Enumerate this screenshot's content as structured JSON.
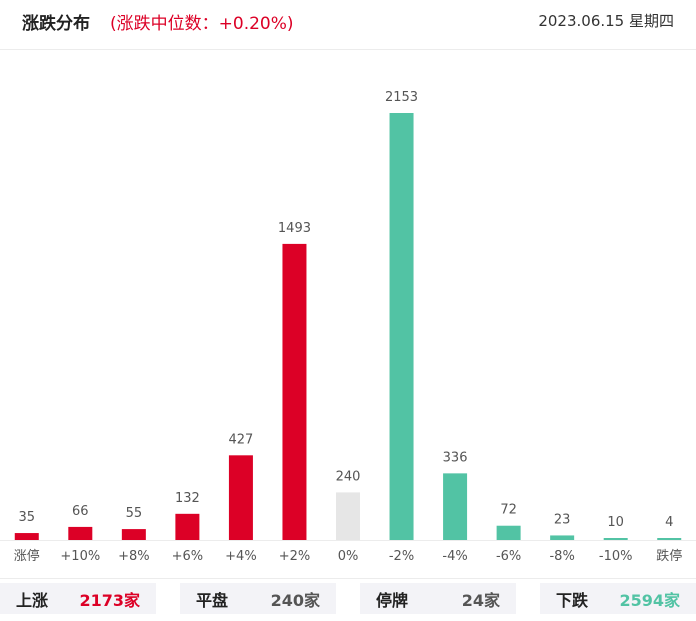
{
  "header": {
    "title": "涨跌分布",
    "subtitle": "(涨跌中位数：+0.20%)",
    "date": "2023.06.15 星期四"
  },
  "colors": {
    "up": "#dc0026",
    "flat": "#e6e6e6",
    "down": "#52c3a4",
    "grid": "#ececec"
  },
  "chart_data": {
    "type": "bar",
    "categories": [
      "涨停",
      "+10%",
      "+8%",
      "+6%",
      "+4%",
      "+2%",
      "0%",
      "-2%",
      "-4%",
      "-6%",
      "-8%",
      "-10%",
      "跌停"
    ],
    "values": [
      35,
      66,
      55,
      132,
      427,
      1493,
      240,
      2153,
      336,
      72,
      23,
      10,
      4
    ],
    "bar_colors": [
      "up",
      "up",
      "up",
      "up",
      "up",
      "up",
      "flat",
      "down",
      "down",
      "down",
      "down",
      "down",
      "down"
    ],
    "title": "涨跌分布",
    "xlabel": "",
    "ylabel": "",
    "ylim": [
      0,
      2153
    ],
    "grid": false,
    "data_labels": true
  },
  "summary": [
    {
      "label": "上涨",
      "value": "2173家",
      "color": "#dc0026"
    },
    {
      "label": "平盘",
      "value": "240家",
      "color": "#555555"
    },
    {
      "label": "停牌",
      "value": "24家",
      "color": "#555555"
    },
    {
      "label": "下跌",
      "value": "2594家",
      "color": "#52c3a4"
    }
  ]
}
